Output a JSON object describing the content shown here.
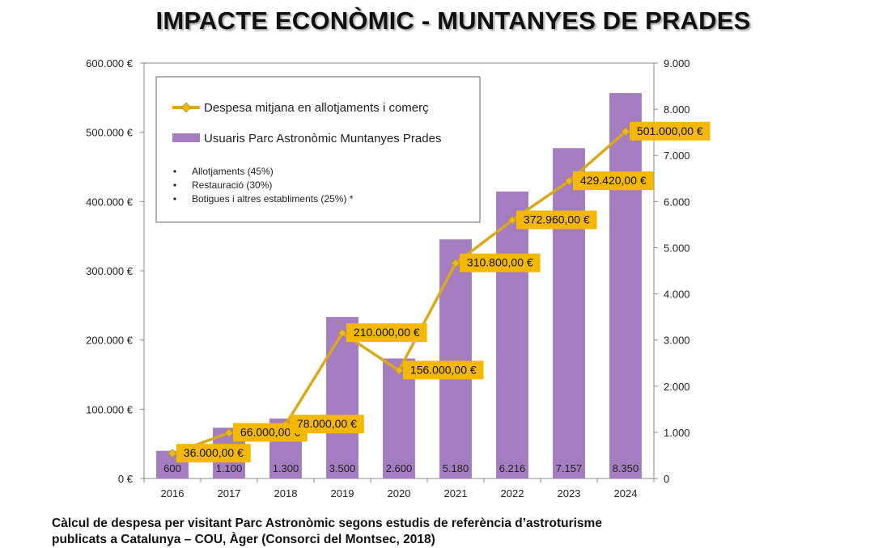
{
  "title": "IMPACTE ECONÒMIC - MUNTANYES DE PRADES",
  "footnote": {
    "line1": "Càlcul de despesa per visitant  Parc Astronòmic segons estudis de referència d’astroturisme",
    "line2": "publicats a Catalunya – COU, Àger (Consorci del Montsec, 2018)"
  },
  "chart_data": {
    "type": "bar",
    "categories": [
      "2016",
      "2017",
      "2018",
      "2019",
      "2020",
      "2021",
      "2022",
      "2023",
      "2024"
    ],
    "series": [
      {
        "name": "Usuaris Parc Astronòmic Muntanyes Prades",
        "type": "bar",
        "axis": "right",
        "values": [
          600,
          1100,
          1300,
          3500,
          2600,
          5180,
          6216,
          7157,
          8350
        ],
        "labels": [
          "600",
          "1.100",
          "1.300",
          "3.500",
          "2.600",
          "5.180",
          "6.216",
          "7.157",
          "8.350"
        ],
        "color": "#A47CC0"
      },
      {
        "name": "Despesa mitjana en allotjaments i comerç",
        "type": "line",
        "axis": "left",
        "values": [
          36000,
          66000,
          78000,
          210000,
          156000,
          310800,
          372960,
          429420,
          501000
        ],
        "labels": [
          "36.000,00 €",
          "66.000,00 €",
          "78.000,00 €",
          "210.000,00 €",
          "156.000,00 €",
          "310.800,00 €",
          "372.960,00 €",
          "429.420,00 €",
          "501.000,00 €"
        ],
        "color": "#D9A91A"
      }
    ],
    "left_axis": {
      "ylim": [
        0,
        600000
      ],
      "ticks": [
        "0 €",
        "100.000 €",
        "200.000 €",
        "300.000 €",
        "400.000 €",
        "500.000 €",
        "600.000 €"
      ]
    },
    "right_axis": {
      "ylim": [
        0,
        9000
      ],
      "ticks": [
        "0",
        "1.000",
        "2.000",
        "3.000",
        "4.000",
        "5.000",
        "6.000",
        "7.000",
        "8.000",
        "9.000"
      ]
    },
    "legend_bullets": [
      "Allotjaments (45%)",
      "Restauració (30%)",
      "Botigues i altres establiments (25%) *"
    ],
    "label_box_color": "#F5B800",
    "grid": false,
    "legend_position": "top-left"
  }
}
